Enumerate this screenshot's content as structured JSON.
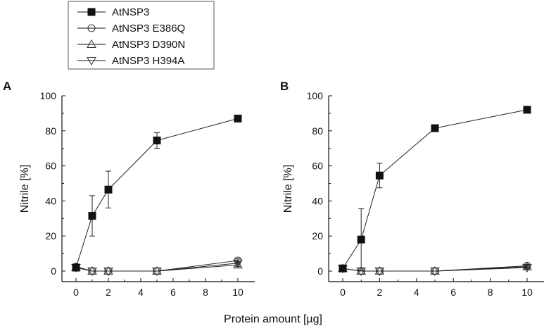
{
  "figure": {
    "xlabel": "Protein amount [µg]"
  },
  "legend": {
    "placement": "top-center",
    "entries": [
      {
        "name": "AtNSP3",
        "marker": "filled-square"
      },
      {
        "name": "AtNSP3 E386Q",
        "marker": "open-circle"
      },
      {
        "name": "AtNSP3 D390N",
        "marker": "open-triangle-up"
      },
      {
        "name": "AtNSP3 H394A",
        "marker": "open-triangle-down"
      }
    ]
  },
  "chart_data": [
    {
      "type": "line",
      "panel_label": "A",
      "xlabel": "",
      "ylabel": "Nitrile [%]",
      "xlim": [
        0,
        10
      ],
      "ylim": [
        0,
        100
      ],
      "xticks": [
        0,
        2,
        4,
        6,
        8,
        10
      ],
      "yticks": [
        0,
        20,
        40,
        60,
        80,
        100
      ],
      "grid": false,
      "x": [
        0,
        1,
        2,
        5,
        10
      ],
      "series": [
        {
          "name": "AtNSP3",
          "marker": "filled-square",
          "values": [
            2,
            31.5,
            46.5,
            74.5,
            87
          ],
          "errors": [
            1.5,
            11.5,
            10.5,
            4.5,
            1.8
          ]
        },
        {
          "name": "AtNSP3 E386Q",
          "marker": "open-circle",
          "values": [
            2.5,
            0,
            0,
            0,
            6
          ],
          "errors": [
            1,
            0.5,
            0.5,
            0.5,
            1
          ]
        },
        {
          "name": "AtNSP3 D390N",
          "marker": "open-triangle-up",
          "values": [
            2,
            0,
            0,
            0,
            3.5
          ],
          "errors": [
            1,
            0.5,
            0.5,
            0.5,
            1
          ]
        },
        {
          "name": "AtNSP3 H394A",
          "marker": "open-triangle-down",
          "values": [
            2,
            0,
            0,
            0,
            4.5
          ],
          "errors": [
            1,
            0.5,
            0.5,
            0.5,
            1
          ]
        }
      ]
    },
    {
      "type": "line",
      "panel_label": "B",
      "xlabel": "",
      "ylabel": "Nitrile [%]",
      "xlim": [
        0,
        10
      ],
      "ylim": [
        0,
        100
      ],
      "xticks": [
        0,
        2,
        4,
        6,
        8,
        10
      ],
      "yticks": [
        0,
        20,
        40,
        60,
        80,
        100
      ],
      "grid": false,
      "x": [
        0,
        1,
        2,
        5,
        10
      ],
      "series": [
        {
          "name": "AtNSP3",
          "marker": "filled-square",
          "values": [
            1.5,
            18,
            54.5,
            81.5,
            92
          ],
          "errors": [
            0.8,
            17.5,
            7,
            1,
            1
          ]
        },
        {
          "name": "AtNSP3 E386Q",
          "marker": "open-circle",
          "values": [
            1.5,
            0,
            0,
            0,
            3
          ],
          "errors": [
            0.8,
            0.5,
            0.5,
            0.5,
            0.8
          ]
        },
        {
          "name": "AtNSP3 D390N",
          "marker": "open-triangle-up",
          "values": [
            1.5,
            0,
            0,
            0,
            2.5
          ],
          "errors": [
            0.8,
            0.5,
            0.5,
            0.5,
            0.8
          ]
        },
        {
          "name": "AtNSP3 H394A",
          "marker": "open-triangle-down",
          "values": [
            1.5,
            0,
            0,
            0,
            2
          ],
          "errors": [
            0.8,
            0.5,
            0.5,
            0.5,
            0.8
          ]
        }
      ]
    }
  ]
}
